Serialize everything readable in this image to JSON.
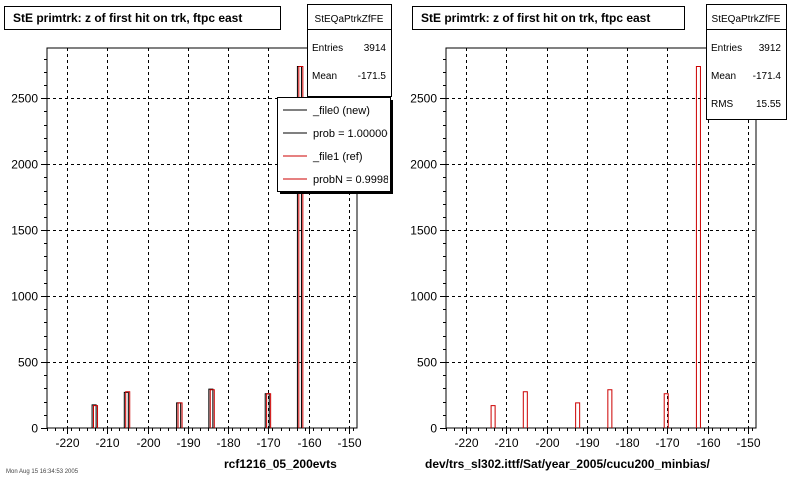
{
  "footer_stamp": "Mon Aug 15 16:34:53 2005",
  "chart_data": [
    {
      "type": "bar",
      "title": "StE primtrk: z of first hit on trk, ftpc east",
      "caption": "rcf1216_05_200evts",
      "xlim": [
        -225,
        -148
      ],
      "ylim": [
        0,
        2880
      ],
      "x_ticks": [
        -220,
        -210,
        -200,
        -190,
        -180,
        -170,
        -160,
        -150
      ],
      "y_ticks": [
        0,
        500,
        1000,
        1500,
        2000,
        2500
      ],
      "grid": true,
      "stats": {
        "name": "StEQaPtrkZfFE",
        "rows": [
          {
            "label": "Entries",
            "value": "3914"
          },
          {
            "label": "Mean",
            "value": "-171.5"
          }
        ]
      },
      "legend": {
        "placement": "top-right",
        "entries": [
          {
            "label": "_file0 (new)",
            "color": "#000000"
          },
          {
            "label": "prob = 1.000000",
            "color": "#000000"
          },
          {
            "label": "_file1 (ref)",
            "color": "#cc0000"
          },
          {
            "label": "probN = 0.999831",
            "color": "#cc0000"
          }
        ]
      },
      "series": [
        {
          "name": "_file0 (new)",
          "color": "#000000",
          "x": [
            -213.3,
            -205.3,
            -192.3,
            -184.3,
            -170.3,
            -162.3
          ],
          "values": [
            175,
            270,
            190,
            295,
            260,
            2740
          ]
        },
        {
          "name": "_file1 (ref)",
          "color": "#cc0000",
          "x": [
            -213.3,
            -205.3,
            -192.3,
            -184.3,
            -170.3,
            -162.3
          ],
          "values": [
            170,
            275,
            190,
            290,
            260,
            2740
          ]
        }
      ]
    },
    {
      "type": "bar",
      "title": "StE primtrk: z of first hit on trk, ftpc east",
      "caption": "dev/trs_sl302.ittf/Sat/year_2005/cucu200_minbias/",
      "xlim": [
        -225,
        -148
      ],
      "ylim": [
        0,
        2880
      ],
      "x_ticks": [
        -220,
        -210,
        -200,
        -190,
        -180,
        -170,
        -160,
        -150
      ],
      "y_ticks": [
        0,
        500,
        1000,
        1500,
        2000,
        2500
      ],
      "grid": true,
      "stats": {
        "name": "StEQaPtrkZfFE",
        "rows": [
          {
            "label": "Entries",
            "value": "3912"
          },
          {
            "label": "Mean",
            "value": "-171.4"
          },
          {
            "label": "RMS",
            "value": "15.55"
          }
        ]
      },
      "series": [
        {
          "color": "#cc0000",
          "x": [
            -213.3,
            -205.3,
            -192.3,
            -184.3,
            -170.3,
            -162.3
          ],
          "values": [
            170,
            275,
            190,
            290,
            260,
            2740
          ]
        }
      ]
    }
  ]
}
